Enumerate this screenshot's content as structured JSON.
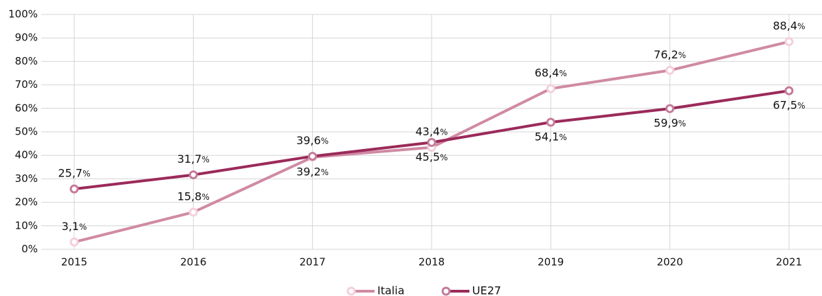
{
  "chart_data": {
    "type": "line",
    "categories": [
      "2015",
      "2016",
      "2017",
      "2018",
      "2019",
      "2020",
      "2021"
    ],
    "series": [
      {
        "name": "Italia",
        "color": "#d08aa4",
        "values": [
          3.1,
          15.8,
          39.2,
          43.4,
          68.4,
          76.2,
          88.4
        ],
        "value_labels": [
          "3,1%",
          "15,8%",
          "39,2%",
          "43,4%",
          "68,4%",
          "76,2%",
          "88,4%"
        ]
      },
      {
        "name": "UE27",
        "color": "#9b2a5a",
        "values": [
          25.7,
          31.7,
          39.6,
          45.5,
          54.1,
          59.9,
          67.5
        ],
        "value_labels": [
          "25,7%",
          "31,7%",
          "39,6%",
          "45,5%",
          "54,1%",
          "59,9%",
          "67,5%"
        ]
      }
    ],
    "ylim": [
      0,
      100
    ],
    "yticks": [
      {
        "value": 0,
        "label": "0%"
      },
      {
        "value": 10,
        "label": "10%"
      },
      {
        "value": 20,
        "label": "20%"
      },
      {
        "value": 30,
        "label": "30%"
      },
      {
        "value": 40,
        "label": "40%"
      },
      {
        "value": 50,
        "label": "50%"
      },
      {
        "value": 60,
        "label": "60%"
      },
      {
        "value": 70,
        "label": "70%"
      },
      {
        "value": 80,
        "label": "80%"
      },
      {
        "value": 90,
        "label": "90%"
      },
      {
        "value": 100,
        "label": "100%"
      }
    ],
    "grid": true,
    "legend": "bottom"
  }
}
